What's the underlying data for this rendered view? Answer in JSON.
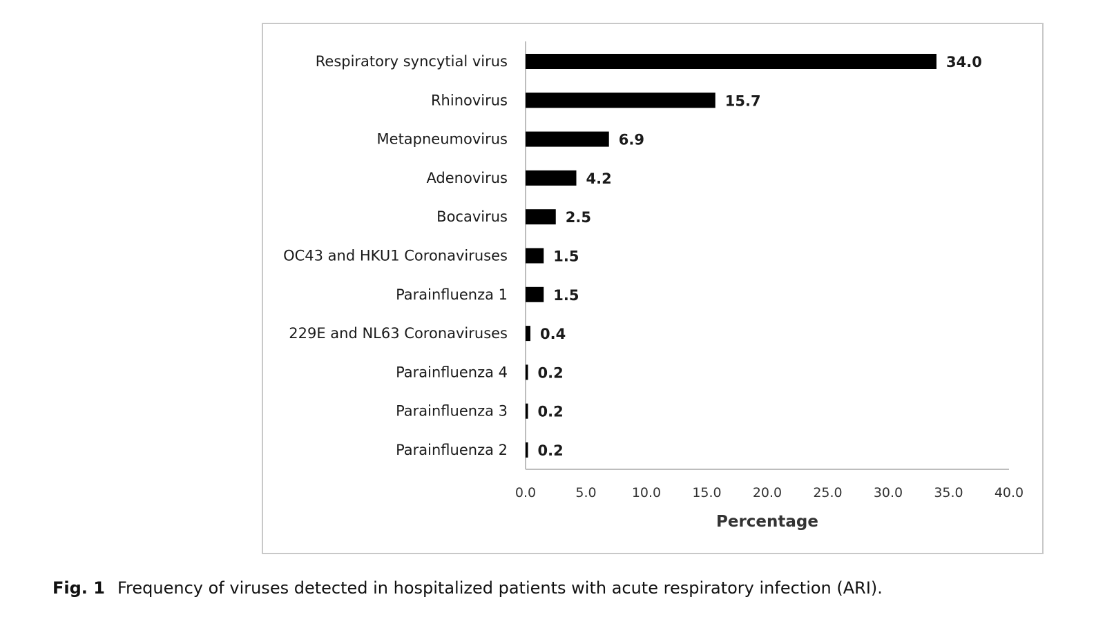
{
  "chart_data": {
    "type": "bar",
    "orientation": "horizontal",
    "categories": [
      "Respiratory syncytial virus",
      "Rhinovirus",
      "Metapneumovirus",
      "Adenovirus",
      "Bocavirus",
      "OC43 and HKU1 Coronaviruses",
      "Parainfluenza 1",
      "229E and NL63 Coronaviruses",
      "Parainfluenza 4",
      "Parainfluenza 3",
      "Parainfluenza 2"
    ],
    "values": [
      34.0,
      15.7,
      6.9,
      4.2,
      2.5,
      1.5,
      1.5,
      0.4,
      0.2,
      0.2,
      0.2
    ],
    "value_labels": [
      "34.0",
      "15.7",
      "6.9",
      "4.2",
      "2.5",
      "1.5",
      "1.5",
      "0.4",
      "0.2",
      "0.2",
      "0.2"
    ],
    "xlabel": "Percentage",
    "ylabel": "",
    "xlim": [
      0,
      40
    ],
    "xticks": [
      "0.0",
      "5.0",
      "10.0",
      "15.0",
      "20.0",
      "25.0",
      "30.0",
      "35.0",
      "40.0"
    ],
    "grid": false,
    "legend": "none",
    "bar_color": "#000000"
  },
  "caption": {
    "label": "Fig. 1",
    "text": "Frequency of viruses detected in hospitalized patients with acute respiratory infection (ARI)."
  }
}
